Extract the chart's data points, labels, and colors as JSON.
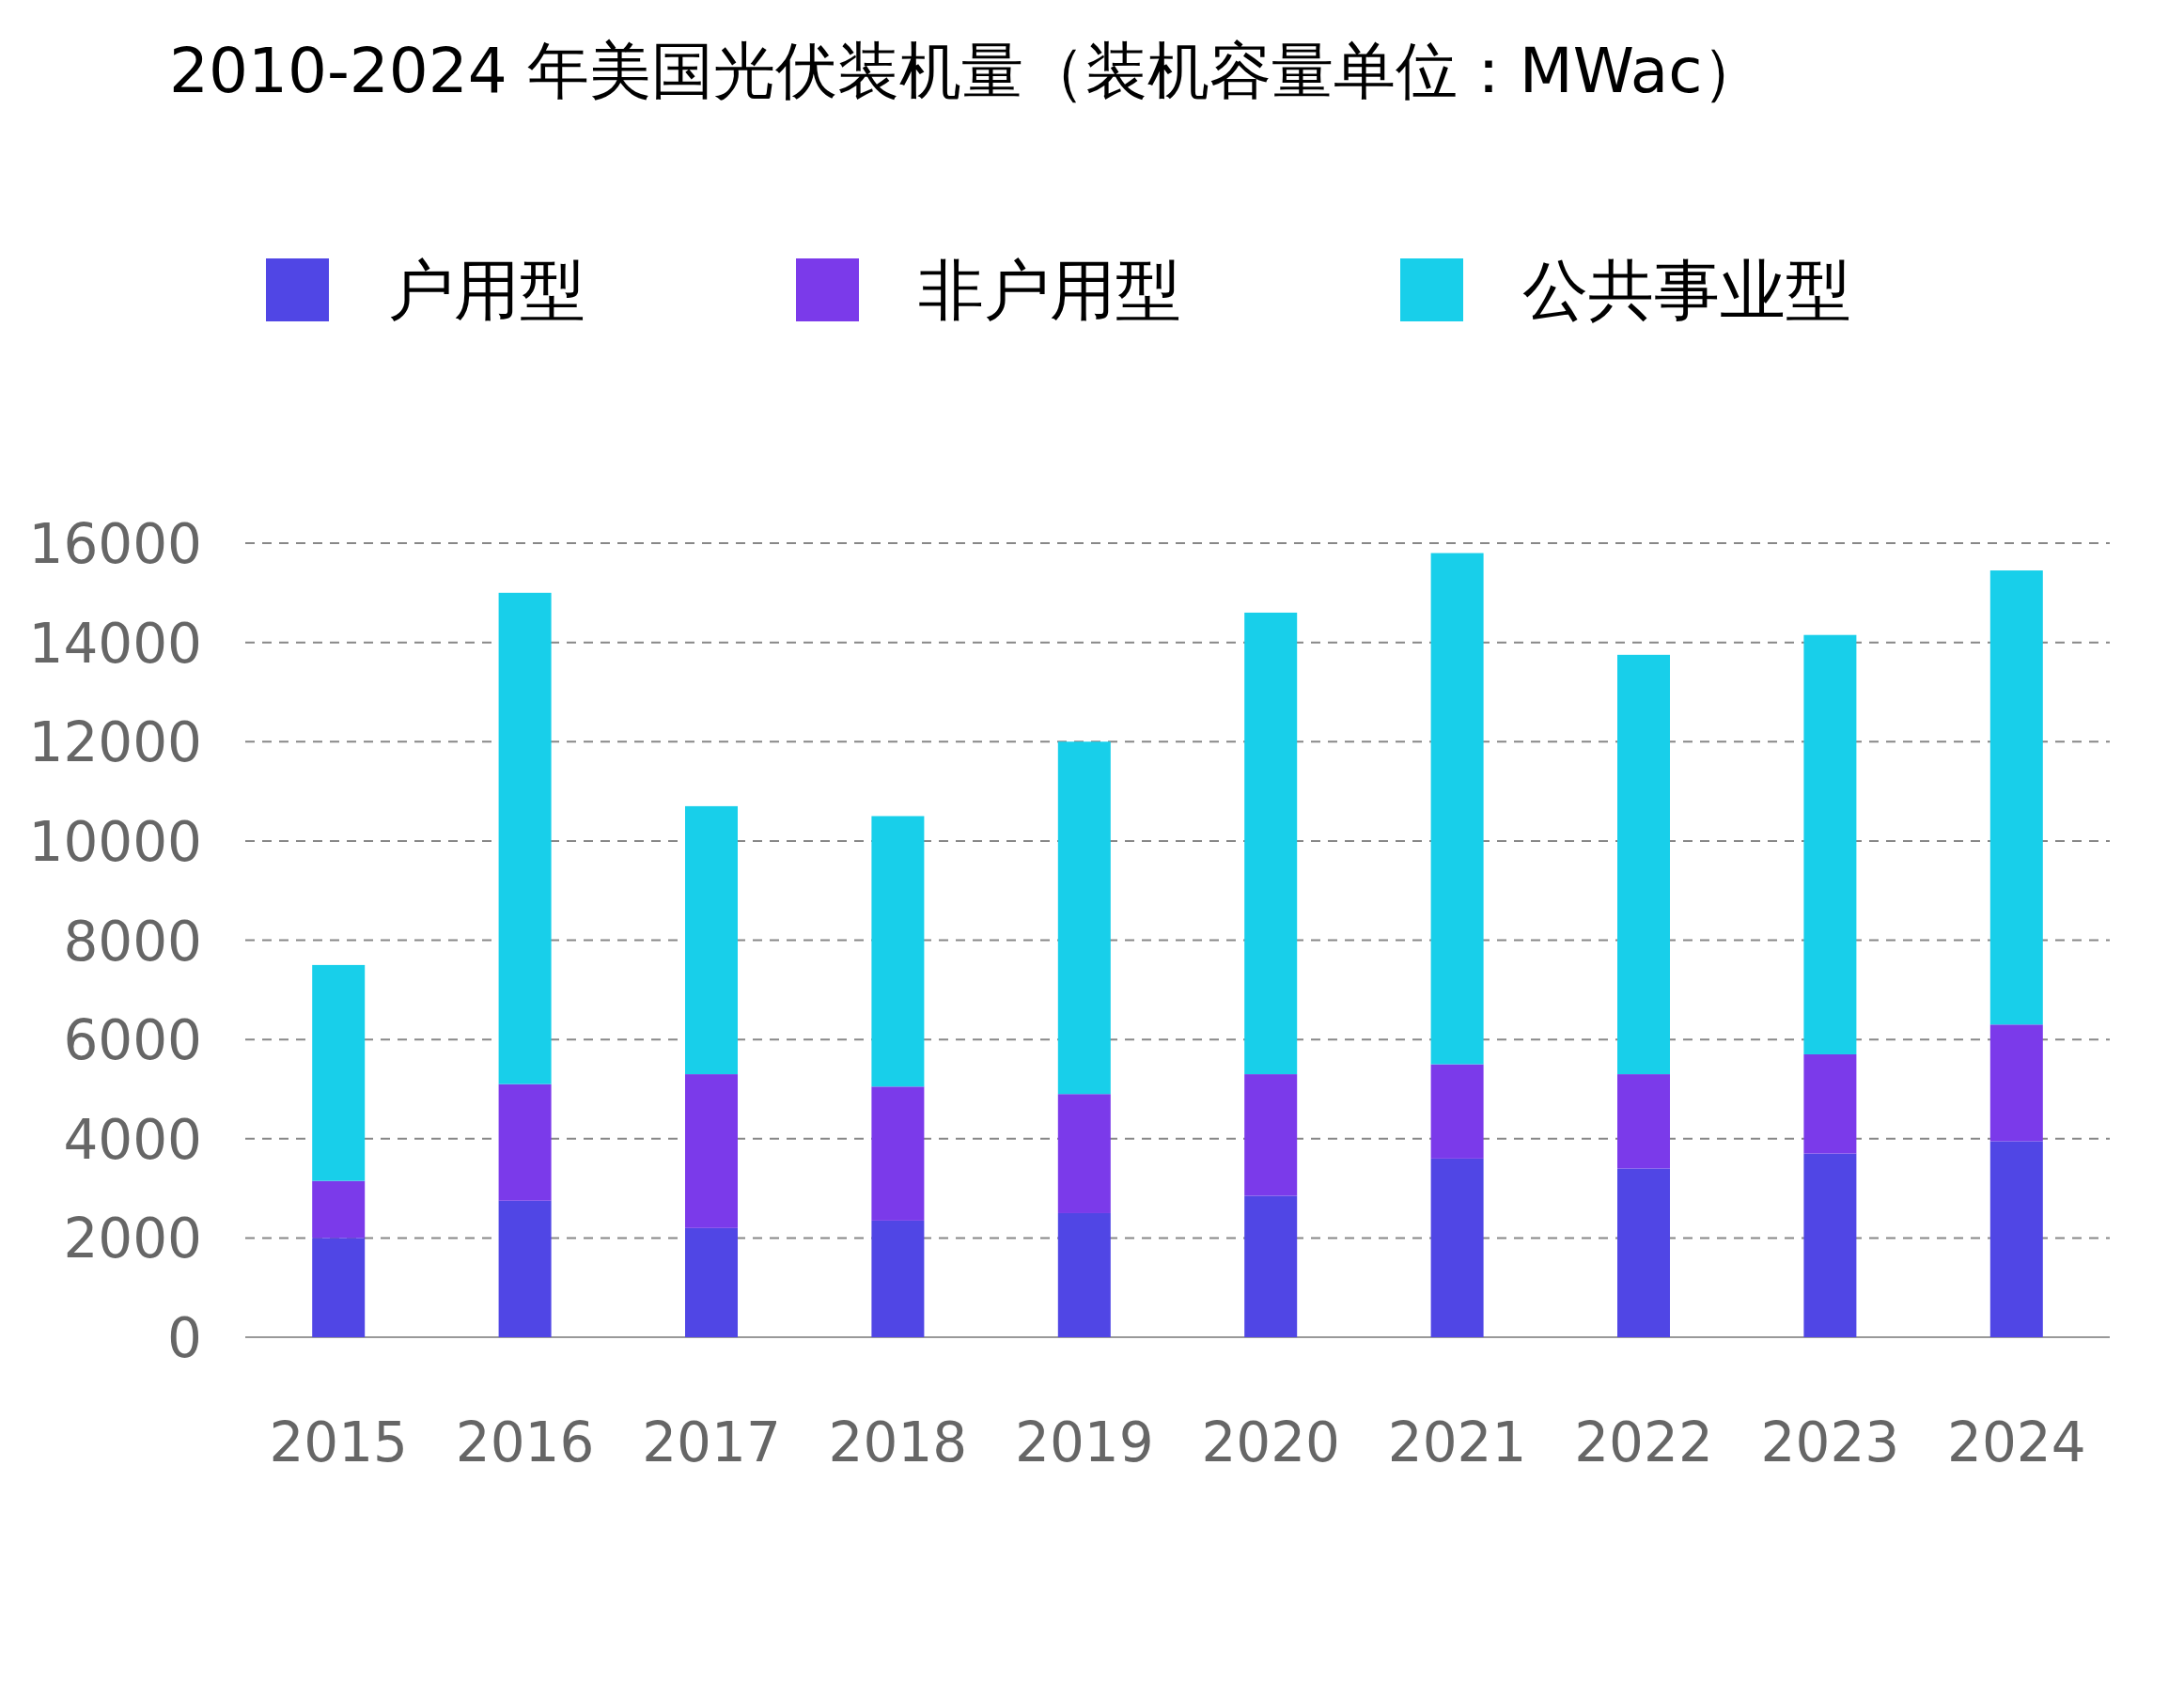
{
  "chart_data": {
    "type": "bar",
    "title": "2010-2024 年美国光伏装机量（装机容量单位：MWac）",
    "categories": [
      "2015",
      "2016",
      "2017",
      "2018",
      "2019",
      "2020",
      "2021",
      "2022",
      "2023",
      "2024"
    ],
    "stacked": true,
    "series": [
      {
        "name": "户用型",
        "color": "#5046e5",
        "values": [
          2000,
          2750,
          2200,
          2350,
          2500,
          2850,
          3600,
          3400,
          3700,
          3950
        ]
      },
      {
        "name": "非户用型",
        "color": "#7b3aea",
        "values": [
          1150,
          2350,
          3100,
          2700,
          2400,
          2450,
          1900,
          1900,
          2000,
          2350
        ]
      },
      {
        "name": "公共事业型",
        "color": "#18cfea",
        "values": [
          4350,
          9900,
          5400,
          5450,
          7100,
          9300,
          10300,
          8450,
          8450,
          9150
        ]
      }
    ],
    "ylim": [
      0,
      16000
    ],
    "yticks": [
      0,
      2000,
      4000,
      6000,
      8000,
      10000,
      12000,
      14000,
      16000
    ],
    "grid": "y",
    "legend": "top"
  }
}
